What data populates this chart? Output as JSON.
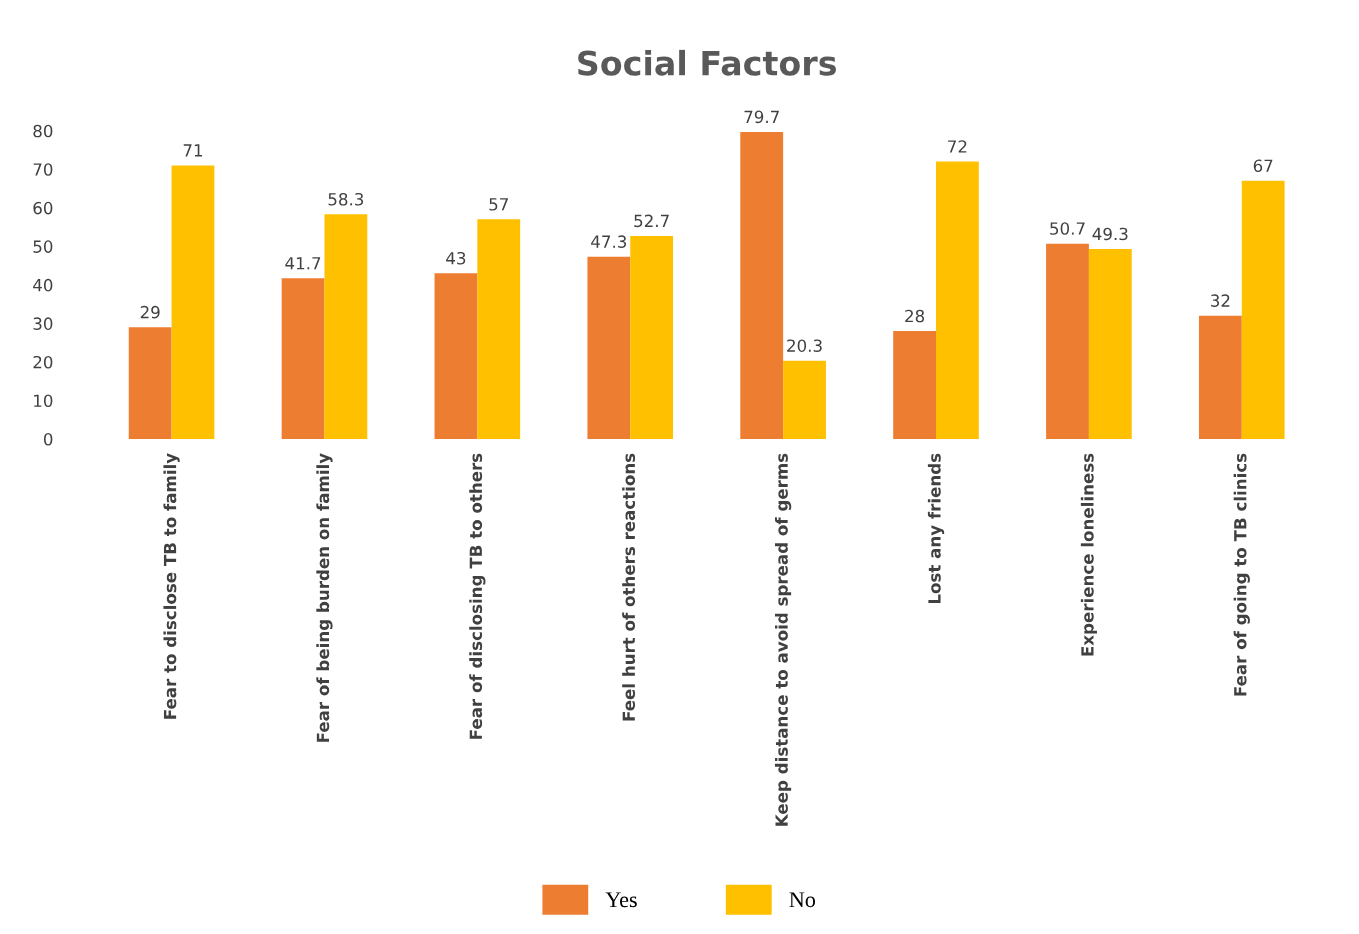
{
  "chart_data": {
    "type": "bar",
    "title": "Social Factors",
    "categories": [
      "Fear to disclose TB to family",
      "Fear of being burden on family",
      "Fear of disclosing TB to others",
      "Feel hurt of others reactions",
      "Keep distance to avoid spread of germs",
      "Lost any friends",
      "Experience loneliness",
      "Fear of going to TB clinics"
    ],
    "series": [
      {
        "name": "Yes",
        "color": "#ed7d31",
        "values": [
          29,
          41.7,
          43,
          47.3,
          79.7,
          28,
          50.7,
          32
        ]
      },
      {
        "name": "No",
        "color": "#ffc000",
        "values": [
          71,
          58.3,
          57,
          52.7,
          20.3,
          72,
          49.3,
          67
        ]
      }
    ],
    "ylim": [
      0,
      80
    ],
    "yticks": [
      0,
      10,
      20,
      30,
      40,
      50,
      60,
      70,
      80
    ],
    "data_labels": true,
    "legend": "bottom",
    "grid": false
  }
}
